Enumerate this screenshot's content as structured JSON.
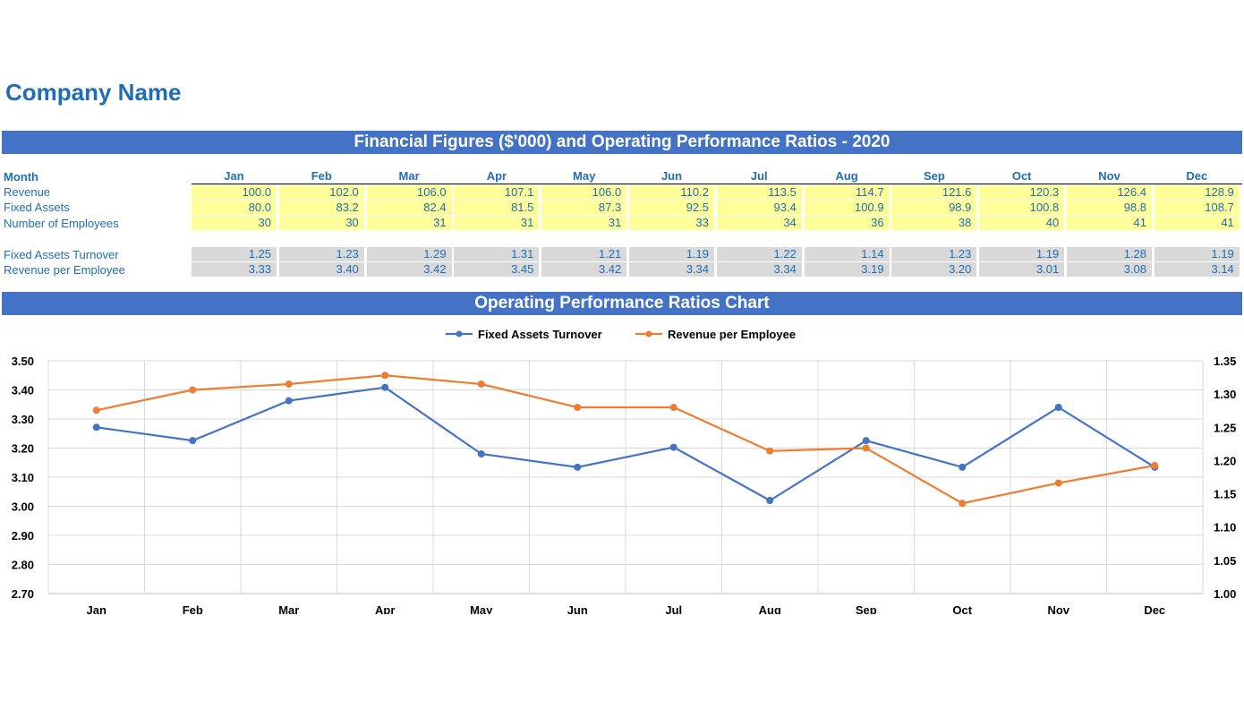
{
  "company_name": "Company Name",
  "table_title": "Financial Figures ($'000) and Operating Performance Ratios - 2020",
  "chart_title": "Operating Performance Ratios Chart",
  "table": {
    "header_label": "Month",
    "months": [
      "Jan",
      "Feb",
      "Mar",
      "Apr",
      "May",
      "Jun",
      "Jul",
      "Aug",
      "Sep",
      "Oct",
      "Nov",
      "Dec"
    ],
    "rows": [
      {
        "label": "Revenue",
        "style": "yellow",
        "values": [
          "100.0",
          "102.0",
          "106.0",
          "107.1",
          "106.0",
          "110.2",
          "113.5",
          "114.7",
          "121.6",
          "120.3",
          "126.4",
          "128.9"
        ]
      },
      {
        "label": "Fixed Assets",
        "style": "yellow",
        "values": [
          "80.0",
          "83.2",
          "82.4",
          "81.5",
          "87.3",
          "92.5",
          "93.4",
          "100.9",
          "98.9",
          "100.8",
          "98.8",
          "108.7"
        ]
      },
      {
        "label": "Number of Employees",
        "style": "yellow",
        "values": [
          "30",
          "30",
          "31",
          "31",
          "31",
          "33",
          "34",
          "36",
          "38",
          "40",
          "41",
          "41"
        ]
      },
      {
        "label": "Fixed Assets Turnover",
        "style": "grey",
        "values": [
          "1.25",
          "1.23",
          "1.29",
          "1.31",
          "1.21",
          "1.19",
          "1.22",
          "1.14",
          "1.23",
          "1.19",
          "1.28",
          "1.19"
        ]
      },
      {
        "label": "Revenue per Employee",
        "style": "grey",
        "values": [
          "3.33",
          "3.40",
          "3.42",
          "3.45",
          "3.42",
          "3.34",
          "3.34",
          "3.19",
          "3.20",
          "3.01",
          "3.08",
          "3.14"
        ]
      }
    ]
  },
  "chart_data": {
    "type": "line",
    "categories": [
      "Jan",
      "Feb",
      "Mar",
      "Apr",
      "May",
      "Jun",
      "Jul",
      "Aug",
      "Sep",
      "Oct",
      "Nov",
      "Dec"
    ],
    "series": [
      {
        "name": "Fixed Assets Turnover",
        "axis": "right",
        "color": "#4472c4",
        "values": [
          1.25,
          1.23,
          1.29,
          1.31,
          1.21,
          1.19,
          1.22,
          1.14,
          1.23,
          1.19,
          1.28,
          1.19
        ]
      },
      {
        "name": "Revenue per Employee",
        "axis": "left",
        "color": "#ed7d31",
        "values": [
          3.33,
          3.4,
          3.42,
          3.45,
          3.42,
          3.34,
          3.34,
          3.19,
          3.2,
          3.01,
          3.08,
          3.14
        ]
      }
    ],
    "y_left": {
      "min": 2.7,
      "max": 3.5,
      "ticks": [
        "3.50",
        "3.40",
        "3.30",
        "3.20",
        "3.10",
        "3.00",
        "2.90",
        "2.80",
        "2.70"
      ]
    },
    "y_right": {
      "min": 1.0,
      "max": 1.35,
      "ticks": [
        "1.35",
        "1.30",
        "1.25",
        "1.20",
        "1.15",
        "1.10",
        "1.05",
        "1.00"
      ]
    },
    "legend_position": "top-center",
    "grid": true
  }
}
